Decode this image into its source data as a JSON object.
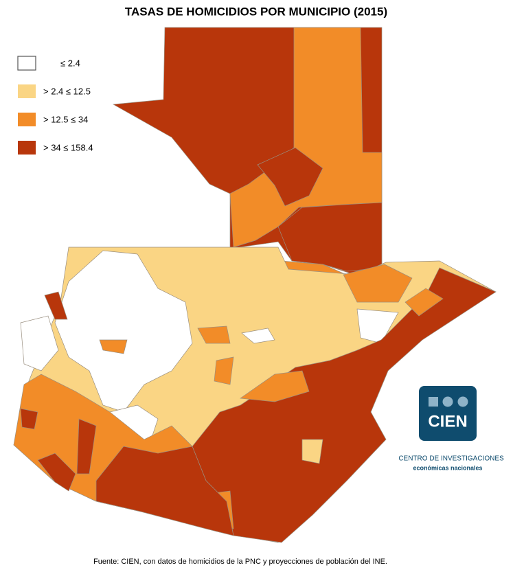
{
  "title": "TASAS DE HOMICIDIOS POR MUNICIPIO (2015)",
  "legend": [
    {
      "label": "≤ 2.4",
      "color": "#ffffff"
    },
    {
      "label": "> 2.4  ≤ 12.5",
      "color": "#fad584"
    },
    {
      "label": "> 12.5  ≤ 34",
      "color": "#f28c28"
    },
    {
      "label": "> 34  ≤ 158.4",
      "color": "#b8360b"
    }
  ],
  "logo": {
    "name": "CIEN",
    "line1": "CENTRO DE INVESTIGACIONES",
    "line2": "económicas nacionales"
  },
  "source": "Fuente: CIEN, con datos de homicidios de la PNC y proyecciones de población del INE."
}
